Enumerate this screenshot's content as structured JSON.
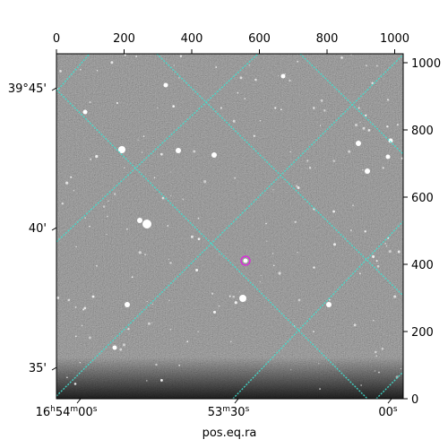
{
  "xlabel": "pos.eq.ra",
  "pixel_axes": {
    "top": [
      "0",
      "200",
      "400",
      "600",
      "800",
      "1000"
    ],
    "right": [
      "0",
      "200",
      "400",
      "600",
      "800",
      "1000"
    ]
  },
  "world_axes": {
    "dec": [
      "39°45'",
      "40'",
      "35'"
    ],
    "ra": [
      {
        "main": "16",
        "sup1": "h",
        "mid": "54",
        "sup2": "m",
        "tail": "00",
        "sup3": "s"
      },
      {
        "main": "53",
        "sup1": "m",
        "mid": "30",
        "sup2": "s",
        "tail": "",
        "sup3": ""
      },
      {
        "main": "00",
        "sup1": "s",
        "mid": "",
        "sup2": "",
        "tail": "",
        "sup3": ""
      }
    ]
  },
  "colors": {
    "grid": "#40e0d0",
    "marker": "#e020e0",
    "background": "#7a7a7a"
  }
}
